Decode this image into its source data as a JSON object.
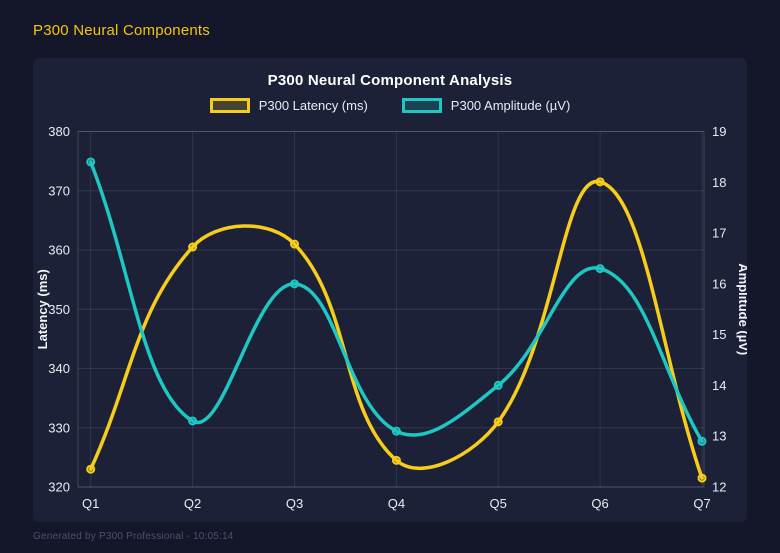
{
  "header": {
    "title": "P300 Neural Components"
  },
  "footer": {
    "text": "Generated by P300 Professional - 10:05:14"
  },
  "colors": {
    "page_bg": "#14172A",
    "card_bg": "#1D2138",
    "grid": "rgba(255,255,255,0.09)",
    "axis_border": "rgba(255,255,255,0.16)",
    "tick_text": "#E9EBF2",
    "title_text": "#FFFFFF",
    "header_accent": "#F2C513",
    "latency_yellow": "#F6CD1B",
    "amplitude_teal": "#1EC7C2",
    "footer_text": "#4B5169"
  },
  "chart_data": {
    "type": "line",
    "title": "P300 Neural Component Analysis",
    "categories": [
      "Q1",
      "Q2",
      "Q3",
      "Q4",
      "Q5",
      "Q6",
      "Q7"
    ],
    "series": [
      {
        "name": "P300 Latency (ms)",
        "axis": "left",
        "color": "#F6CD1B",
        "values": [
          323,
          360.5,
          361,
          324.5,
          331,
          371.5,
          321.5
        ]
      },
      {
        "name": "P300 Amplitude (µV)",
        "axis": "right",
        "color": "#1EC7C2",
        "values": [
          18.4,
          13.3,
          16.0,
          13.1,
          14.0,
          16.3,
          12.9
        ]
      }
    ],
    "left_axis": {
      "label": "Latency (ms)",
      "min": 320,
      "max": 380,
      "ticks": [
        320,
        330,
        340,
        350,
        360,
        370,
        380
      ]
    },
    "right_axis": {
      "label": "Amplitude (µV)",
      "min": 12,
      "max": 19,
      "ticks": [
        12,
        13,
        14,
        15,
        16,
        17,
        18,
        19
      ]
    },
    "legend_position": "top",
    "grid": true,
    "line_tension": 0.4
  }
}
